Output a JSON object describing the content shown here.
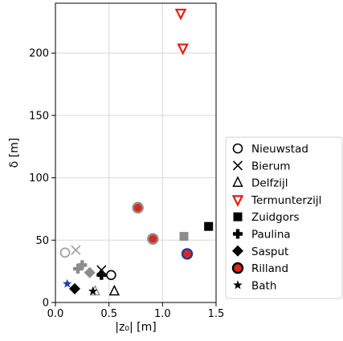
{
  "chart_data": {
    "type": "scatter",
    "xlabel": "|z₀| [m]",
    "ylabel": "δ [m]",
    "xlim": [
      0,
      1.5
    ],
    "ylim": [
      0,
      240
    ],
    "xticks": [
      0.0,
      0.5,
      1.0,
      1.5
    ],
    "xtick_labels": [
      "0.0",
      "0.5",
      "1.0",
      "1.5"
    ],
    "yticks": [
      0,
      50,
      100,
      150,
      200
    ],
    "ytick_labels": [
      "0",
      "50",
      "100",
      "150",
      "200"
    ],
    "grid": true,
    "legend_position": "right",
    "series": [
      {
        "name": "Nieuwstad",
        "marker": "circle-open",
        "points": [
          {
            "x": 0.09,
            "y": 40,
            "color": "#9a9a9a"
          },
          {
            "x": 0.52,
            "y": 22,
            "color": "#000000"
          }
        ]
      },
      {
        "name": "Bierum",
        "marker": "x",
        "points": [
          {
            "x": 0.19,
            "y": 42,
            "color": "#9a9a9a"
          },
          {
            "x": 0.43,
            "y": 26,
            "color": "#000000"
          }
        ]
      },
      {
        "name": "Delfzijl",
        "marker": "triangle-up-open",
        "points": [
          {
            "x": 0.37,
            "y": 9,
            "color": "#9a9a9a"
          },
          {
            "x": 0.55,
            "y": 9,
            "color": "#000000"
          }
        ]
      },
      {
        "name": "Termunterzijl",
        "marker": "triangle-down-open",
        "points": [
          {
            "x": 1.17,
            "y": 232,
            "color": "#e8190f"
          },
          {
            "x": 1.19,
            "y": 204,
            "color": "#e8190f"
          }
        ]
      },
      {
        "name": "Zuidgors",
        "marker": "square",
        "points": [
          {
            "x": 1.2,
            "y": 53,
            "color": "#8c8c8c"
          },
          {
            "x": 1.43,
            "y": 61,
            "color": "#000000"
          }
        ]
      },
      {
        "name": "Paulina",
        "marker": "plus-filled",
        "points": [
          {
            "x": 0.21,
            "y": 27,
            "color": "#8c8c8c"
          },
          {
            "x": 0.25,
            "y": 30,
            "color": "#8c8c8c"
          },
          {
            "x": 0.43,
            "y": 22,
            "color": "#000000"
          }
        ]
      },
      {
        "name": "Sasput",
        "marker": "diamond",
        "points": [
          {
            "x": 0.32,
            "y": 24,
            "color": "#8c8c8c"
          },
          {
            "x": 0.18,
            "y": 11,
            "color": "#000000"
          }
        ]
      },
      {
        "name": "Rilland",
        "marker": "circle-redfill",
        "points": [
          {
            "x": 0.77,
            "y": 76,
            "color": "#8c8c8c"
          },
          {
            "x": 0.91,
            "y": 51,
            "color": "#8c8c8c"
          },
          {
            "x": 1.23,
            "y": 39,
            "color": "#1f3d9c"
          }
        ]
      },
      {
        "name": "Bath",
        "marker": "star",
        "points": [
          {
            "x": 0.11,
            "y": 15,
            "color": "#1f3d9c"
          },
          {
            "x": 0.35,
            "y": 9,
            "color": "#000000"
          }
        ]
      }
    ]
  }
}
